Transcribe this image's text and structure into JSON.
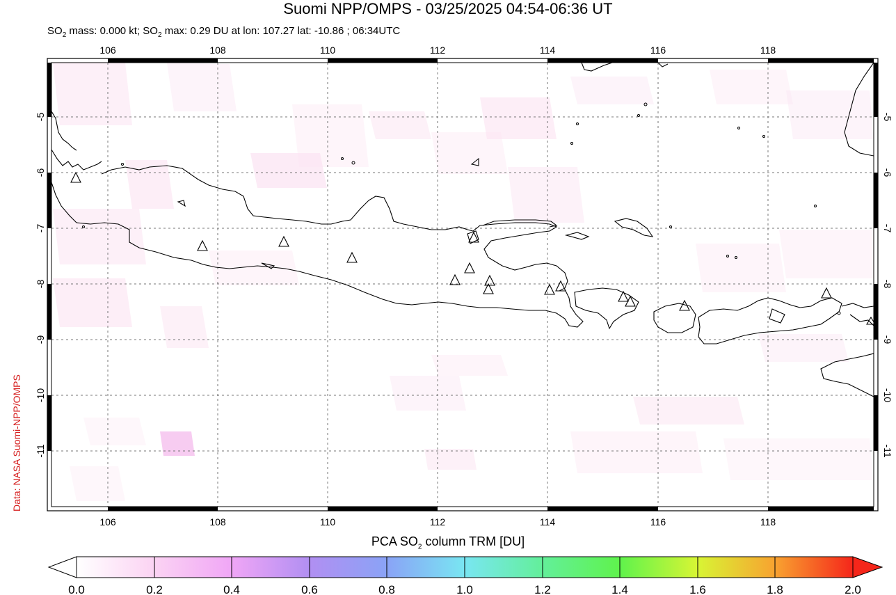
{
  "title": "Suomi NPP/OMPS - 03/25/2025 04:54-06:36 UT",
  "subtitle": {
    "prefix": "SO",
    "sub1": "2",
    "mid": " mass: 0.000 kt; SO",
    "sub2": "2",
    "rest": " max: 0.29 DU at lon: 107.27 lat: -10.86 ; 06:34UTC"
  },
  "credit": "Data: NASA Suomi-NPP/OMPS",
  "map": {
    "lon_ticks": [
      "106",
      "108",
      "110",
      "112",
      "114",
      "116",
      "118"
    ],
    "lat_ticks": [
      "-5",
      "-6",
      "-7",
      "-8",
      "-9",
      "-10",
      "-11"
    ],
    "volcano_count": 16
  },
  "colorbar": {
    "label_prefix": "PCA SO",
    "label_sub": "2",
    "label_suffix": " column TRM [DU]",
    "ticks": [
      "0.0",
      "0.2",
      "0.4",
      "0.6",
      "0.8",
      "1.0",
      "1.2",
      "1.4",
      "1.6",
      "1.8",
      "2.0"
    ],
    "colors": [
      "#ffffff",
      "#fbd3f3",
      "#f0a6f6",
      "#b18ff2",
      "#8aa3f6",
      "#79e6f2",
      "#63ef9a",
      "#5ff34c",
      "#d8f534",
      "#f8a230",
      "#f5261a"
    ]
  }
}
